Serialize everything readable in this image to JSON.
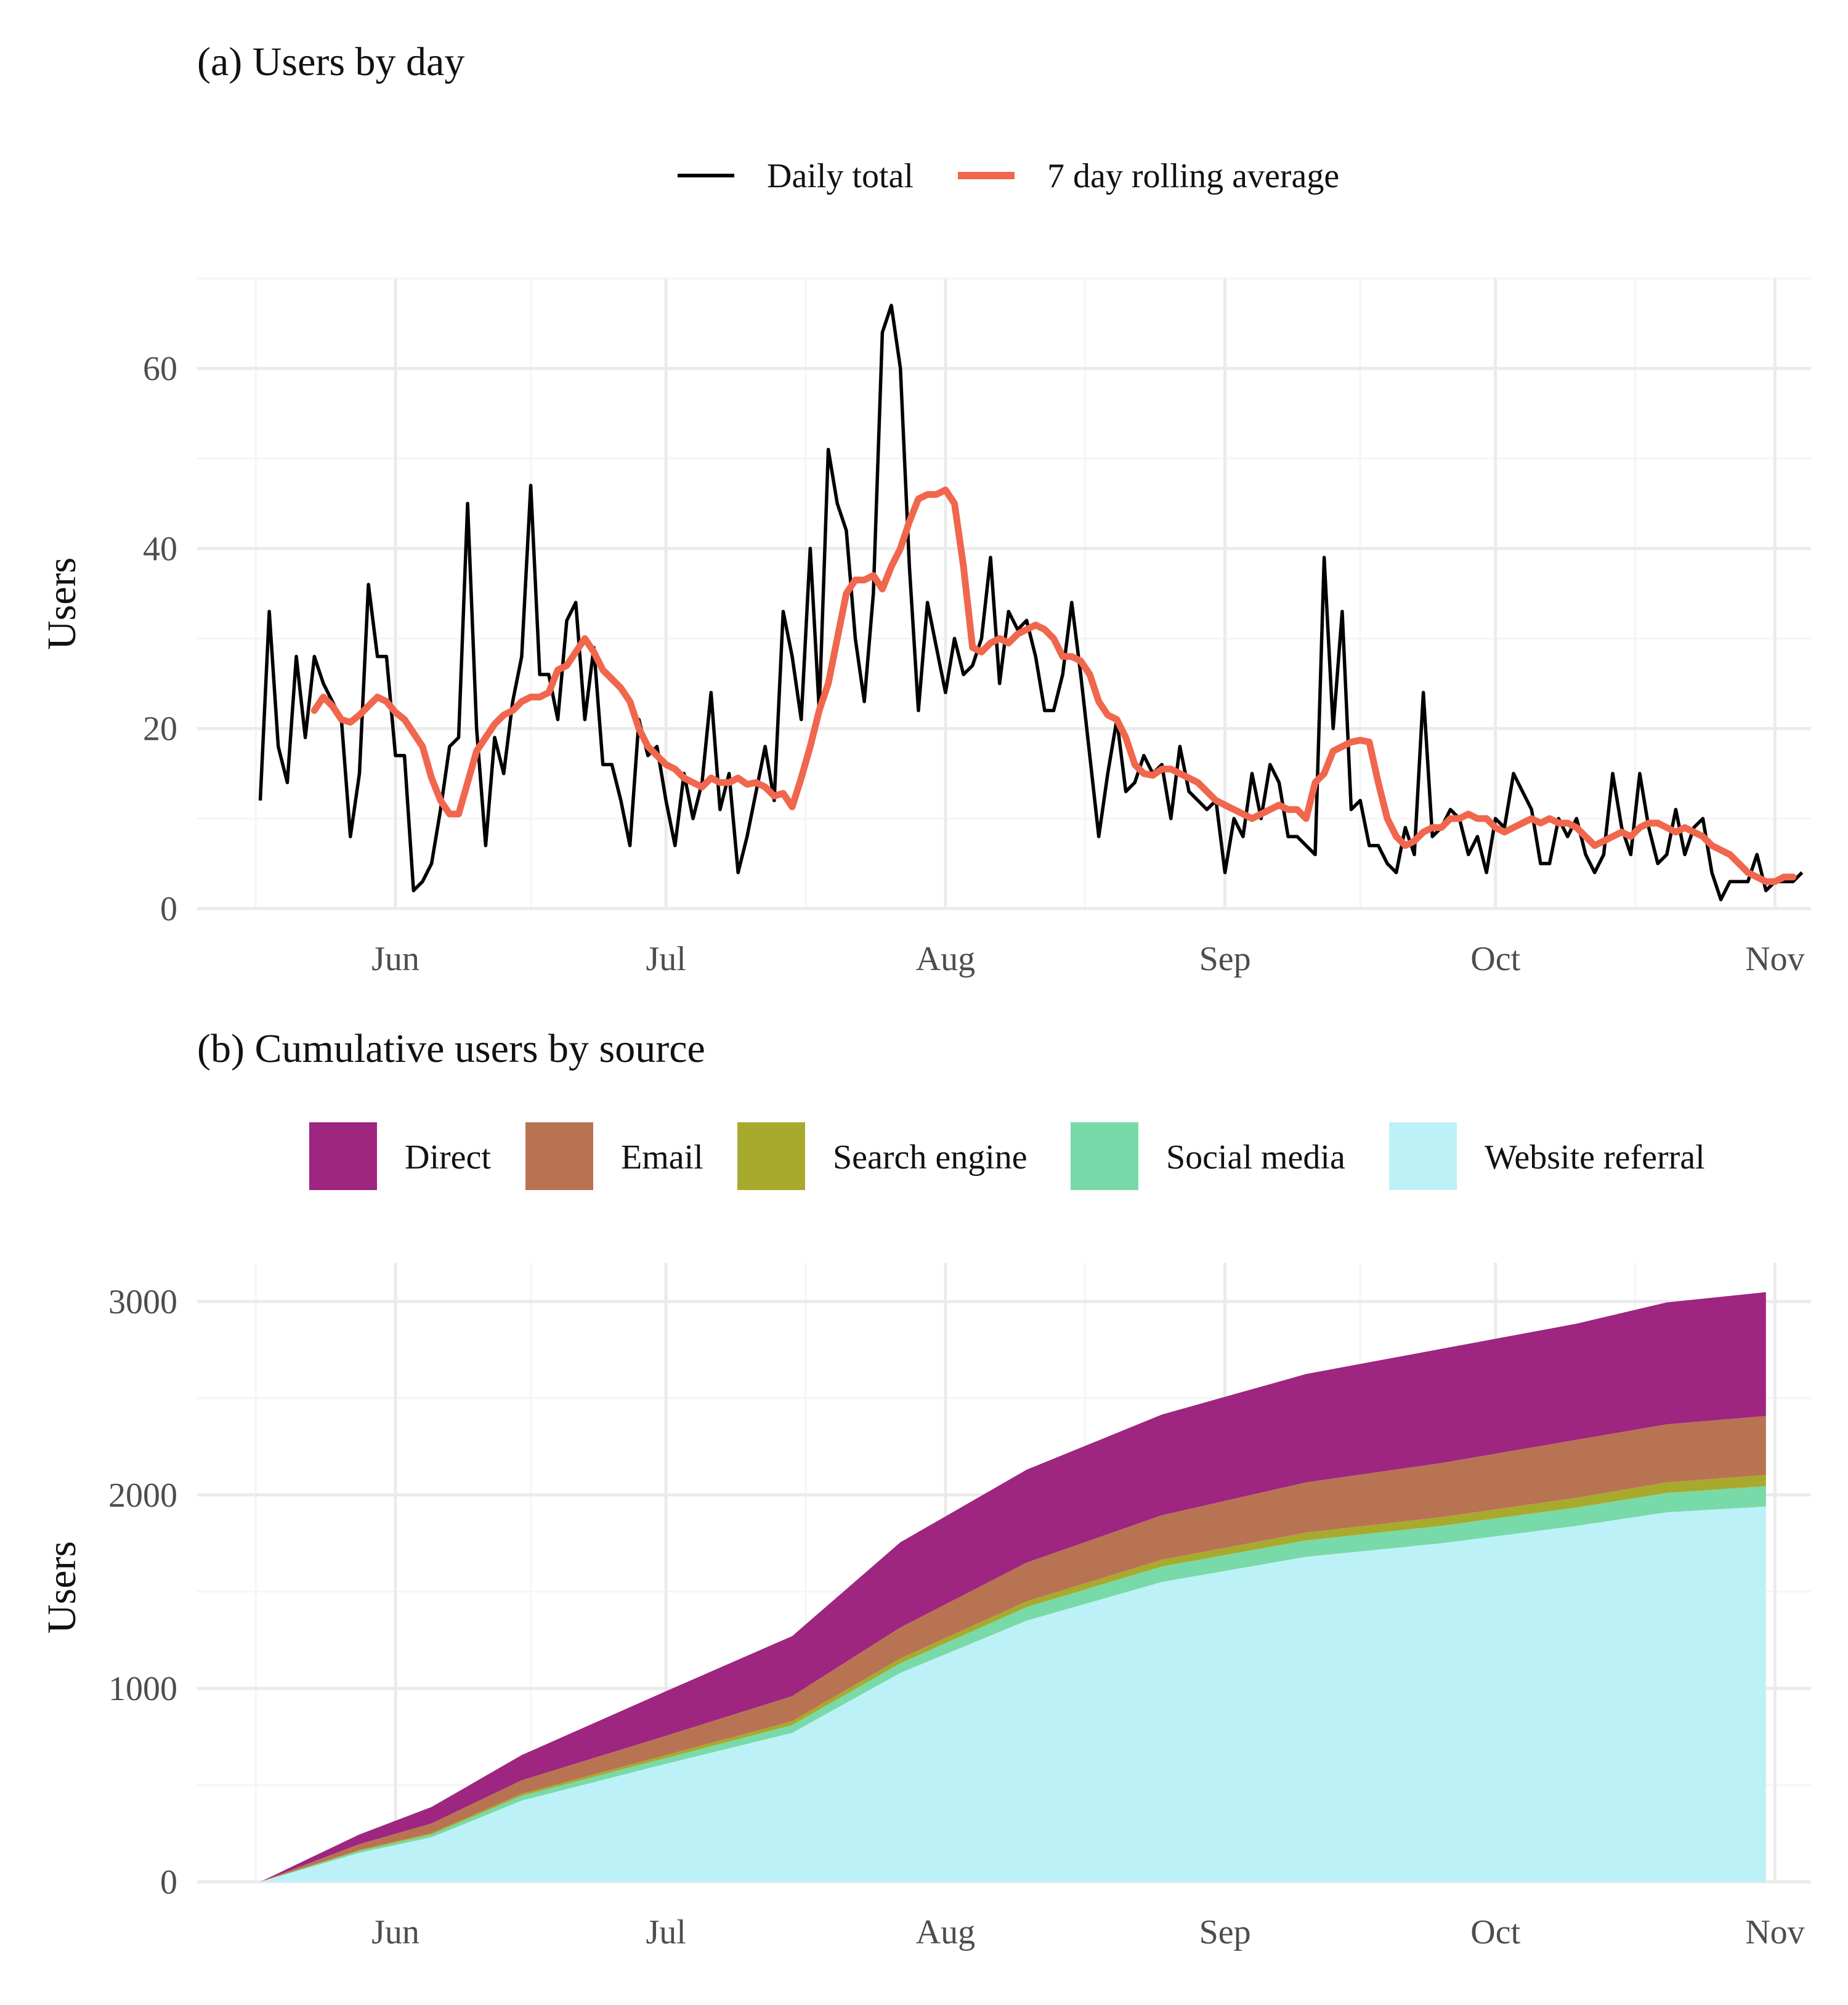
{
  "colors": {
    "daily_line": "#000000",
    "rolling_line": "#F0674E",
    "grid_major": "#EBEBEB",
    "grid_minor": "#F5F5F5",
    "Direct": "#9E2580",
    "Email": "#B87452",
    "Search engine": "#A8AA2E",
    "Social media": "#78DAA8",
    "Website referral": "#BDF1F8"
  },
  "chart_data": [
    {
      "type": "line",
      "title": "(a) Users by day",
      "xlabel": "",
      "ylabel": "Users",
      "grid": true,
      "legend_position": "top",
      "x_ticks": [
        "Jun",
        "Jul",
        "Aug",
        "Sep",
        "Oct",
        "Nov"
      ],
      "x_tick_dates": [
        "2020-06-01",
        "2020-07-01",
        "2020-08-01",
        "2020-09-01",
        "2020-10-01",
        "2020-11-01"
      ],
      "xlim": [
        "2020-05-10",
        "2020-11-05"
      ],
      "y_ticks": [
        0,
        20,
        40,
        60
      ],
      "ylim": [
        0,
        70
      ],
      "x_start": "2020-05-17",
      "series": [
        {
          "name": "Daily total",
          "values": [
            12,
            33,
            18,
            14,
            28,
            19,
            28,
            25,
            23,
            21,
            8,
            15,
            36,
            28,
            28,
            17,
            17,
            2,
            3,
            5,
            11,
            18,
            19,
            45,
            20,
            7,
            19,
            15,
            23,
            28,
            47,
            26,
            26,
            21,
            32,
            34,
            21,
            29,
            16,
            16,
            12,
            7,
            21,
            17,
            18,
            12,
            7,
            15,
            10,
            14,
            24,
            11,
            15,
            4,
            8,
            13,
            18,
            12,
            33,
            28,
            21,
            40,
            22,
            51,
            45,
            42,
            30,
            23,
            35,
            64,
            67,
            60,
            38,
            22,
            34,
            29,
            24,
            30,
            26,
            27,
            30,
            39,
            25,
            33,
            31,
            32,
            28,
            22,
            22,
            26,
            34,
            26,
            17,
            8,
            15,
            21,
            13,
            14,
            17,
            15,
            16,
            10,
            18,
            13,
            12,
            11,
            12,
            4,
            10,
            8,
            15,
            10,
            16,
            14,
            8,
            8,
            7,
            6,
            39,
            20,
            33,
            11,
            12,
            7,
            7,
            5,
            4,
            9,
            6,
            24,
            8,
            9,
            11,
            10,
            6,
            8,
            4,
            10,
            9,
            15,
            13,
            11,
            5,
            5,
            10,
            8,
            10,
            6,
            4,
            6,
            15,
            9,
            6,
            15,
            9,
            5,
            6,
            11,
            6,
            9,
            10,
            4,
            1,
            3,
            3,
            3,
            6,
            2,
            3,
            3,
            3,
            4
          ]
        },
        {
          "name": "7 day rolling average",
          "start_offset": 6,
          "values": [
            22,
            23.5,
            22.5,
            21,
            20.7,
            21.5,
            22.5,
            23.5,
            23,
            21.8,
            21,
            19.5,
            18,
            14.5,
            12,
            10.5,
            10.5,
            14,
            17.5,
            19,
            20.5,
            21.5,
            22,
            23,
            23.5,
            23.5,
            24,
            26.5,
            27,
            28.5,
            30,
            28.5,
            26.5,
            25.5,
            24.5,
            23,
            20,
            18,
            17,
            16,
            15.5,
            14.5,
            14,
            13.5,
            14.5,
            14,
            14,
            14.5,
            13.8,
            14,
            13.5,
            12.5,
            12.8,
            11.3,
            14.5,
            18,
            22,
            25,
            30,
            35,
            36.5,
            36.5,
            37,
            35.5,
            38,
            40,
            43,
            45.5,
            46,
            46,
            46.5,
            45,
            38,
            29,
            28.5,
            29.5,
            30,
            29.5,
            30.5,
            31,
            31.5,
            31,
            30,
            28,
            28,
            27.5,
            26,
            23,
            21.5,
            21,
            19,
            16,
            15,
            14.8,
            15.5,
            15.5,
            15,
            14.5,
            14,
            13,
            12,
            11.5,
            11,
            10.5,
            10,
            10.5,
            11,
            11.5,
            11,
            11,
            10,
            14,
            15,
            17.5,
            18,
            18.5,
            18.7,
            18.5,
            14,
            10,
            8,
            7,
            7.5,
            8.5,
            9,
            9,
            10,
            10,
            10.5,
            10,
            10,
            9,
            8.5,
            9,
            9.5,
            10,
            9.5,
            10,
            9.5,
            9.5,
            9,
            8,
            7,
            7.5,
            8,
            8.5,
            8,
            9,
            9.5,
            9.5,
            9,
            8.5,
            9,
            8.5,
            8,
            7,
            6.5,
            6,
            5,
            4,
            3.5,
            3,
            3,
            3.5,
            3.5
          ]
        }
      ]
    },
    {
      "type": "area",
      "stacked": true,
      "title": "(b) Cumulative users by source",
      "xlabel": "",
      "ylabel": "Users",
      "grid": true,
      "legend_position": "top",
      "x_ticks": [
        "Jun",
        "Jul",
        "Aug",
        "Sep",
        "Oct",
        "Nov"
      ],
      "x_tick_dates": [
        "2020-06-01",
        "2020-07-01",
        "2020-08-01",
        "2020-09-01",
        "2020-10-01",
        "2020-11-01"
      ],
      "xlim": [
        "2020-05-10",
        "2020-11-05"
      ],
      "y_ticks": [
        0,
        1000,
        2000,
        3000
      ],
      "ylim": [
        0,
        3200
      ],
      "x": [
        "2020-05-17",
        "2020-05-28",
        "2020-06-05",
        "2020-06-15",
        "2020-07-01",
        "2020-07-15",
        "2020-07-27",
        "2020-08-10",
        "2020-08-25",
        "2020-09-10",
        "2020-09-25",
        "2020-10-10",
        "2020-10-20",
        "2020-10-31"
      ],
      "series": [
        {
          "name": "Website referral",
          "values": [
            0,
            150,
            230,
            420,
            610,
            770,
            1080,
            1350,
            1550,
            1680,
            1750,
            1840,
            1910,
            1940
          ]
        },
        {
          "name": "Social media",
          "values": [
            0,
            10,
            15,
            25,
            30,
            40,
            50,
            70,
            80,
            85,
            90,
            95,
            100,
            105
          ]
        },
        {
          "name": "Search engine",
          "values": [
            0,
            5,
            7,
            10,
            15,
            20,
            25,
            30,
            35,
            40,
            45,
            50,
            55,
            58
          ]
        },
        {
          "name": "Email",
          "values": [
            0,
            30,
            50,
            70,
            100,
            130,
            160,
            200,
            230,
            260,
            280,
            300,
            300,
            305
          ]
        },
        {
          "name": "Direct",
          "values": [
            0,
            50,
            85,
            130,
            230,
            310,
            440,
            480,
            520,
            560,
            590,
            600,
            630,
            640
          ]
        }
      ]
    }
  ]
}
